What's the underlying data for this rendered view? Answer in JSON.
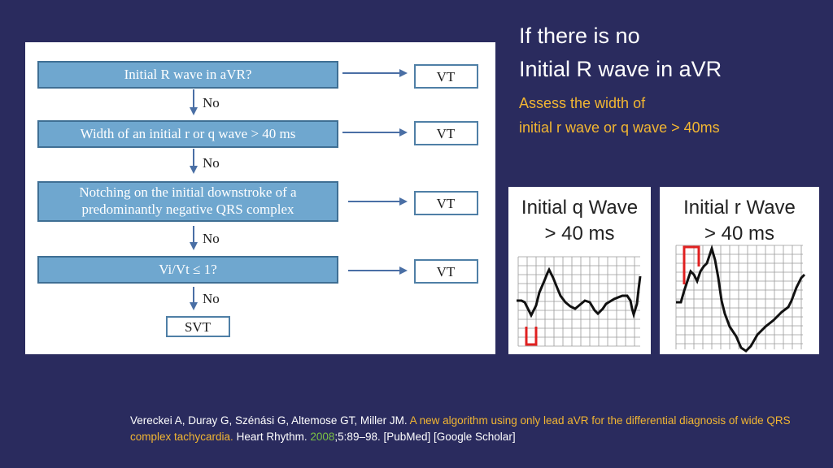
{
  "flowchart": {
    "steps": [
      {
        "question": "Initial R wave in aVR?",
        "outcome": "VT",
        "no_label": "No"
      },
      {
        "question": "Width of an initial r or q wave > 40 ms",
        "outcome": "VT",
        "no_label": "No"
      },
      {
        "question_line1": "Notching on the initial downstroke of a",
        "question_line2": "predominantly negative QRS complex",
        "outcome": "VT",
        "no_label": "No"
      },
      {
        "question": "Vi/Vt ≤ 1?",
        "outcome": "VT",
        "no_label": "No"
      }
    ],
    "final": "SVT"
  },
  "heading": {
    "line1": "If there is no",
    "line2": "Initial R wave in aVR",
    "sub1": "Assess the width of",
    "sub2": "initial r wave or q wave > 40ms"
  },
  "ecg": {
    "q_panel": {
      "title1": "Initial q Wave",
      "title2": "> 40 ms"
    },
    "r_panel": {
      "title1": "Initial r Wave",
      "title2": "> 40 ms"
    },
    "grid_color": "#9a9a9a",
    "marker_color": "#e02020"
  },
  "citation": {
    "authors": "Vereckei A, Duray G, Szénási G, Altemose GT, Miller JM.",
    "title": "A new algorithm using only lead aVR for the differential diagnosis of wide QRS complex tachycardia.",
    "journal": "Heart Rhythm.",
    "year": "2008",
    "rest": ";5:89–98. [PubMed] [Google Scholar]"
  }
}
